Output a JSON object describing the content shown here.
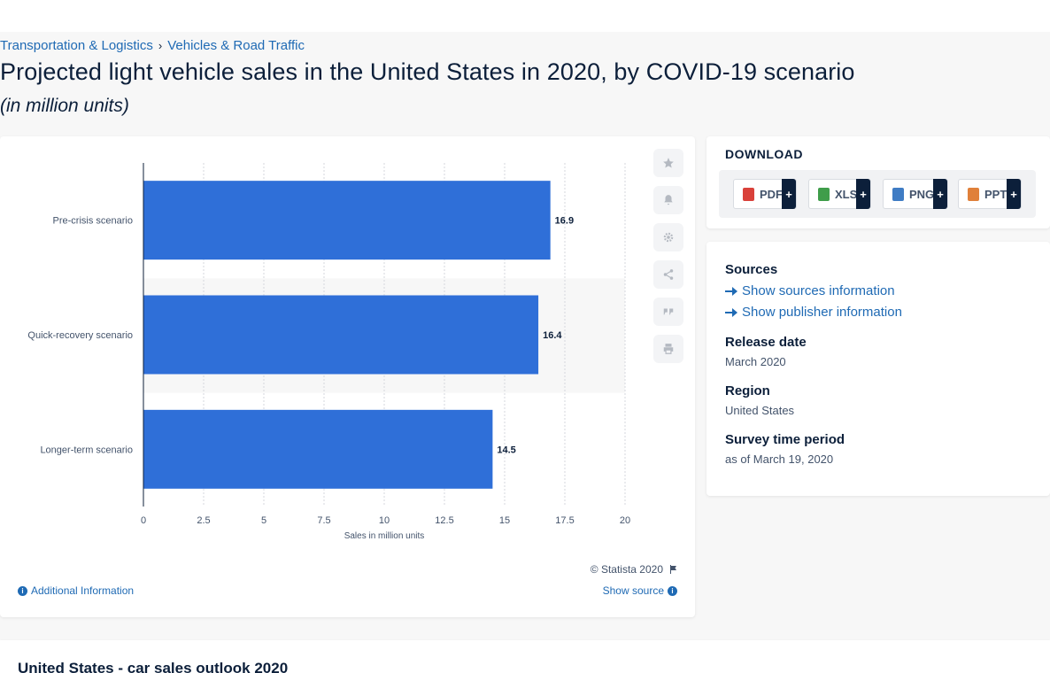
{
  "breadcrumb": {
    "items": [
      "Transportation & Logistics",
      "Vehicles & Road Traffic"
    ],
    "separator": "›"
  },
  "page": {
    "title": "Projected light vehicle sales in the United States in 2020, by COVID-19 scenario",
    "subtitle": "(in million units)"
  },
  "chart_data": {
    "type": "bar",
    "orientation": "horizontal",
    "categories": [
      "Pre-crisis scenario",
      "Quick-recovery scenario",
      "Longer-term scenario"
    ],
    "values": [
      16.9,
      16.4,
      14.5
    ],
    "value_labels": [
      "16.9",
      "16.4",
      "14.5"
    ],
    "xlabel": "Sales in million units",
    "ylabel": "",
    "xlim": [
      0,
      20
    ],
    "ticks": [
      0,
      2.5,
      5,
      7.5,
      10,
      12.5,
      15,
      17.5,
      20
    ],
    "tick_labels": [
      "0",
      "2.5",
      "5",
      "7.5",
      "10",
      "12.5",
      "15",
      "17.5",
      "20"
    ],
    "bar_color": "#2f6fd8",
    "grid": true,
    "legend": "none"
  },
  "chart_card": {
    "copyright": "© Statista 2020",
    "additional_info": "Additional Information",
    "show_source": "Show source",
    "tools": [
      "star-icon",
      "bell-icon",
      "gear-icon",
      "share-icon",
      "quote-icon",
      "print-icon"
    ]
  },
  "download": {
    "title": "DOWNLOAD",
    "buttons": [
      {
        "label": "PDF",
        "color": "#d9413a"
      },
      {
        "label": "XLS",
        "color": "#3f9d4a"
      },
      {
        "label": "PNG",
        "color": "#3f7cc4"
      },
      {
        "label": "PPT",
        "color": "#e0803a"
      }
    ],
    "plus": "+"
  },
  "info": {
    "sources_label": "Sources",
    "show_sources": "Show sources information",
    "show_publisher": "Show publisher information",
    "release_label": "Release date",
    "release_value": "March 2020",
    "region_label": "Region",
    "region_value": "United States",
    "survey_label": "Survey time period",
    "survey_value": "as of March 19, 2020"
  },
  "bottom": {
    "title": "United States - car sales outlook 2020"
  }
}
